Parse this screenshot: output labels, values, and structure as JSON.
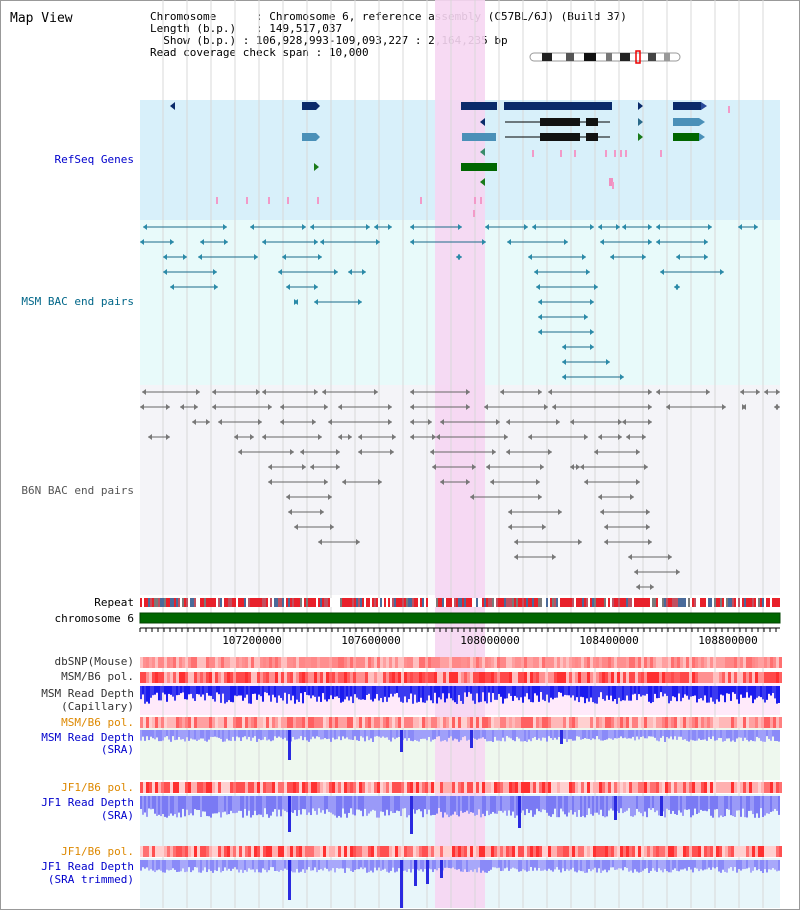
{
  "app_title": "Map View",
  "header": {
    "chromosome_label": "Chromosome",
    "chromosome_value": "Chromosome 6, reference assembly (C57BL/6J) (Build 37)",
    "length_label": "Length (b.p.)",
    "length_value": "149,517,037",
    "show_label": "Show (b.p.)",
    "show_value": "106,928,993-109,093,227 : 2,164,235 bp",
    "coverage_label": "Read coverage check span",
    "coverage_value": "10,000"
  },
  "tracks": {
    "refseq": "RefSeq Genes",
    "msm_bac": "MSM BAC end pairs",
    "b6n_bac": "B6N BAC end pairs",
    "repeat": "Repeat",
    "chromosome": "chromosome 6",
    "dbsnp": "dbSNP(Mouse)",
    "msm_b6_pol_1": "MSM/B6 pol.",
    "msm_read_depth_cap_1": "MSM Read Depth",
    "msm_read_depth_cap_2": "(Capillary)",
    "msm_b6_pol_2": "MSM/B6 pol.",
    "msm_read_depth_sra_1": "MSM Read Depth",
    "msm_read_depth_sra_2": "(SRA)",
    "jf1_b6_pol_1": "JF1/B6 pol.",
    "jf1_read_depth_sra_1": "JF1 Read Depth",
    "jf1_read_depth_sra_2": "(SRA)",
    "jf1_b6_pol_2": "JF1/B6 pol.",
    "jf1_read_depth_trim_1": "JF1 Read Depth",
    "jf1_read_depth_trim_2": "(SRA trimmed)"
  },
  "ruler": {
    "ticks": [
      "107200000",
      "107600000",
      "108000000",
      "108400000",
      "108800000"
    ]
  },
  "colors": {
    "refseq_label": "#0000cc",
    "msm_label": "#006688",
    "b6n_label": "#555555",
    "pol_orange": "#dd8800",
    "depth_blue": "#0000cc",
    "highlight": "#f6d6f2"
  }
}
